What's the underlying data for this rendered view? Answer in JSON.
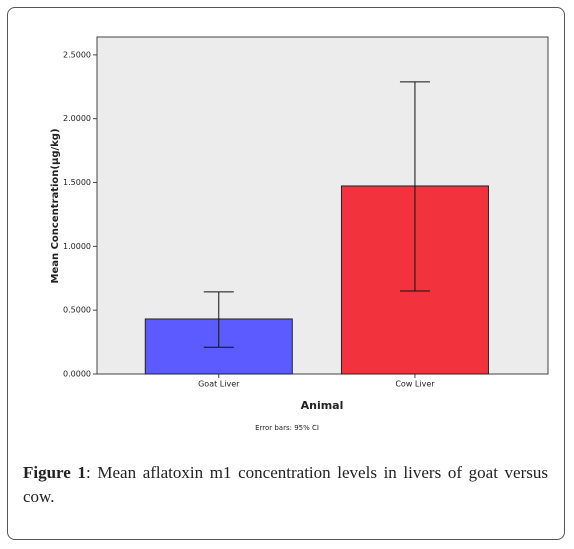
{
  "chart_data": {
    "type": "bar",
    "categories": [
      "Goat Liver",
      "Cow Liver"
    ],
    "series": [
      {
        "values": [
          0.431,
          1.473
        ],
        "ci_low": [
          0.21,
          0.65
        ],
        "ci_high": [
          0.643,
          2.288
        ],
        "colors": [
          "#5b5bff",
          "#f2333d"
        ]
      }
    ],
    "ylim": [
      0,
      2.64
    ],
    "yticks": [
      {
        "value": 0,
        "label": "0.0000"
      },
      {
        "value": 0.5,
        "label": "0.5000"
      },
      {
        "value": 1,
        "label": "1.0000"
      },
      {
        "value": 1.5,
        "label": "1.5000"
      },
      {
        "value": 2,
        "label": "2.0000"
      },
      {
        "value": 2.5,
        "label": "2.5000"
      }
    ],
    "xlabel": "Animal",
    "ylabel": "Mean Concentration(µg/kg)",
    "note": "Error bars: 95% CI",
    "caption_label": "Figure 1",
    "caption_text": ": Mean aflatoxin m1 concentration levels in livers of goat versus cow."
  }
}
